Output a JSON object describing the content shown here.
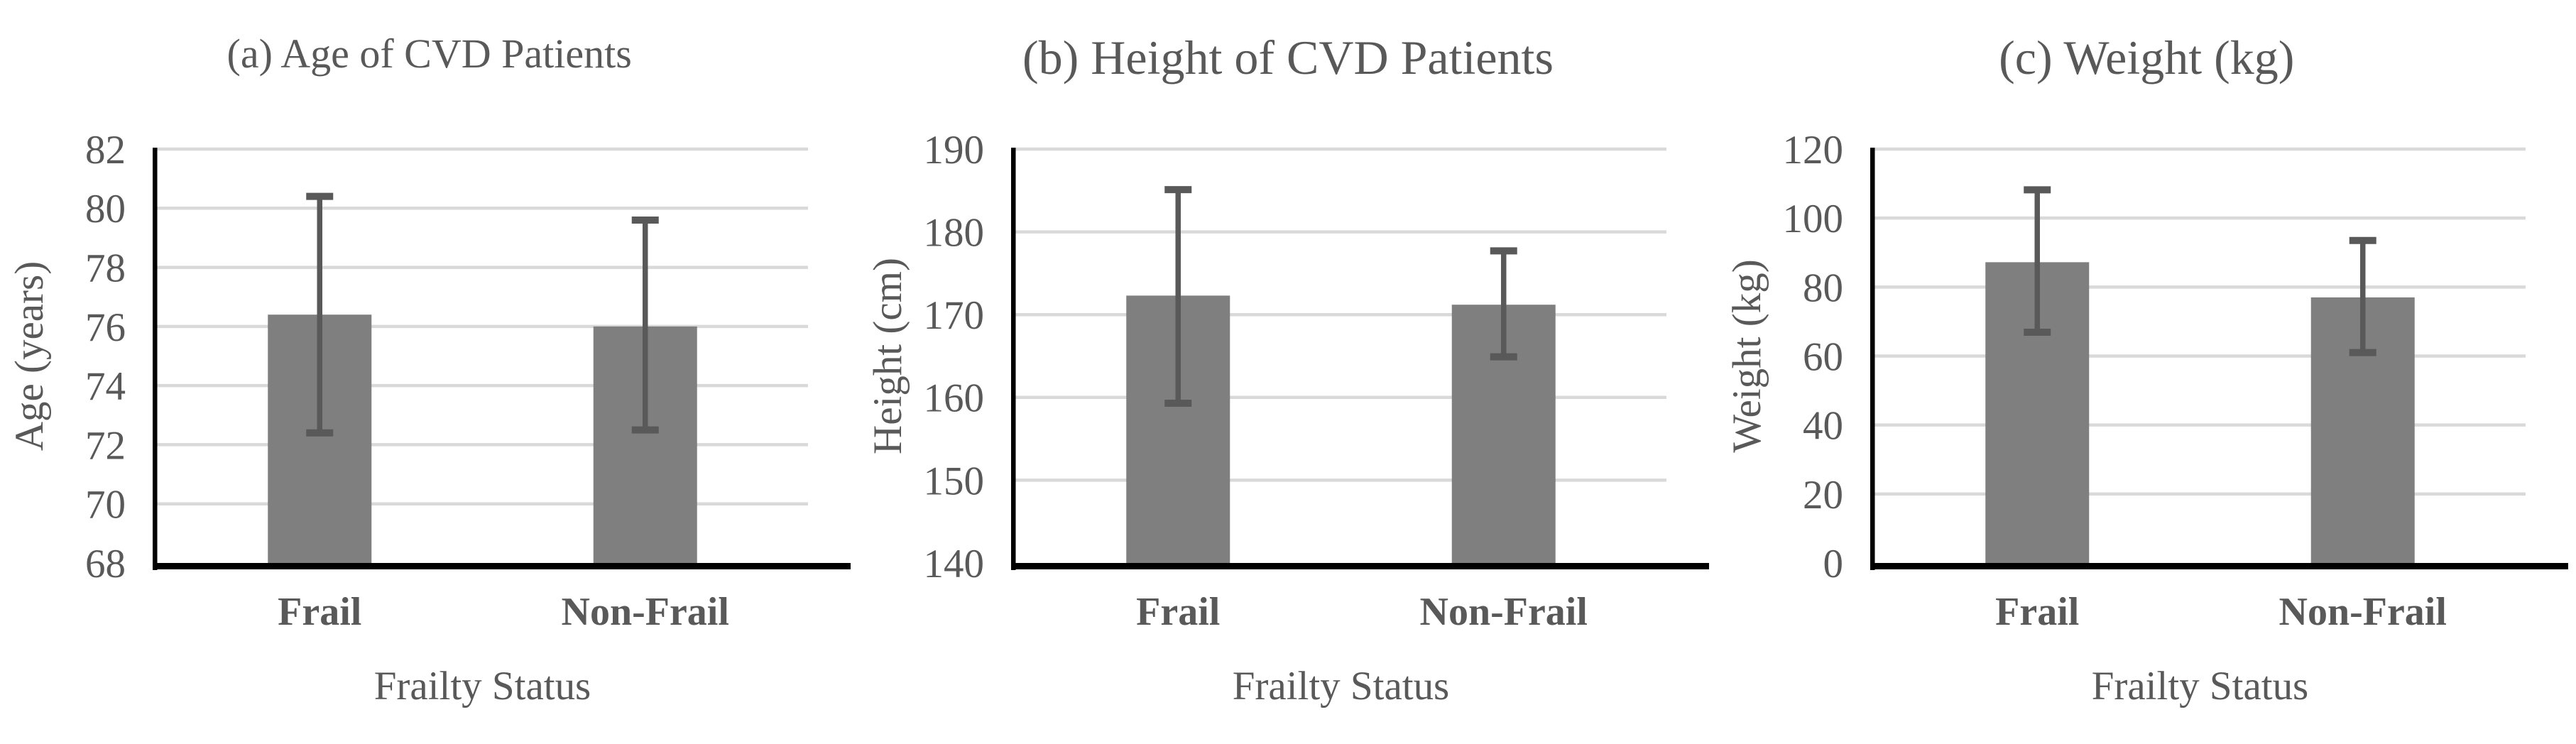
{
  "figure": {
    "background": "#ffffff",
    "x_axis_title": "Frailty Status",
    "categories": [
      "Frail",
      "Non-Frail"
    ]
  },
  "colors": {
    "bar": "#7f7f7f",
    "error_bar": "#595959",
    "gridline": "#d9d9d9",
    "axis_line": "#000000",
    "text": "#595959"
  },
  "chart_data": [
    {
      "type": "bar",
      "title": "(a) Age of CVD Patients",
      "xlabel": "Frailty Status",
      "ylabel": "Age (years)",
      "categories": [
        "Frail",
        "Non-Frail"
      ],
      "values": [
        76.4,
        76.0
      ],
      "error_low": [
        72.4,
        72.5
      ],
      "error_high": [
        80.4,
        79.6
      ],
      "ylim": [
        68,
        82
      ],
      "ytick_step": 2,
      "ytick_labels": [
        "68",
        "70",
        "72",
        "74",
        "76",
        "78",
        "80",
        "82"
      ],
      "grid": true,
      "legend": "none"
    },
    {
      "type": "bar",
      "title": "(b) Height of CVD Patients",
      "xlabel": "Frailty Status",
      "ylabel": "Height (cm)",
      "categories": [
        "Frail",
        "Non-Frail"
      ],
      "values": [
        172.3,
        171.2
      ],
      "error_low": [
        159.3,
        164.9
      ],
      "error_high": [
        185.1,
        177.7
      ],
      "ylim": [
        140,
        190
      ],
      "ytick_step": 10,
      "ytick_labels": [
        "140",
        "150",
        "160",
        "170",
        "180",
        "190"
      ],
      "grid": true,
      "legend": "none"
    },
    {
      "type": "bar",
      "title": "(c) Weight (kg)",
      "xlabel": "Frailty Status",
      "ylabel": "Weight (kg)",
      "categories": [
        "Frail",
        "Non-Frail"
      ],
      "values": [
        87.2,
        77.0
      ],
      "error_low": [
        66.9,
        61.0
      ],
      "error_high": [
        108.2,
        93.5
      ],
      "ylim": [
        0,
        120
      ],
      "ytick_step": 20,
      "ytick_labels": [
        "0",
        "20",
        "40",
        "60",
        "80",
        "100",
        "120"
      ],
      "grid": true,
      "legend": "none"
    }
  ]
}
